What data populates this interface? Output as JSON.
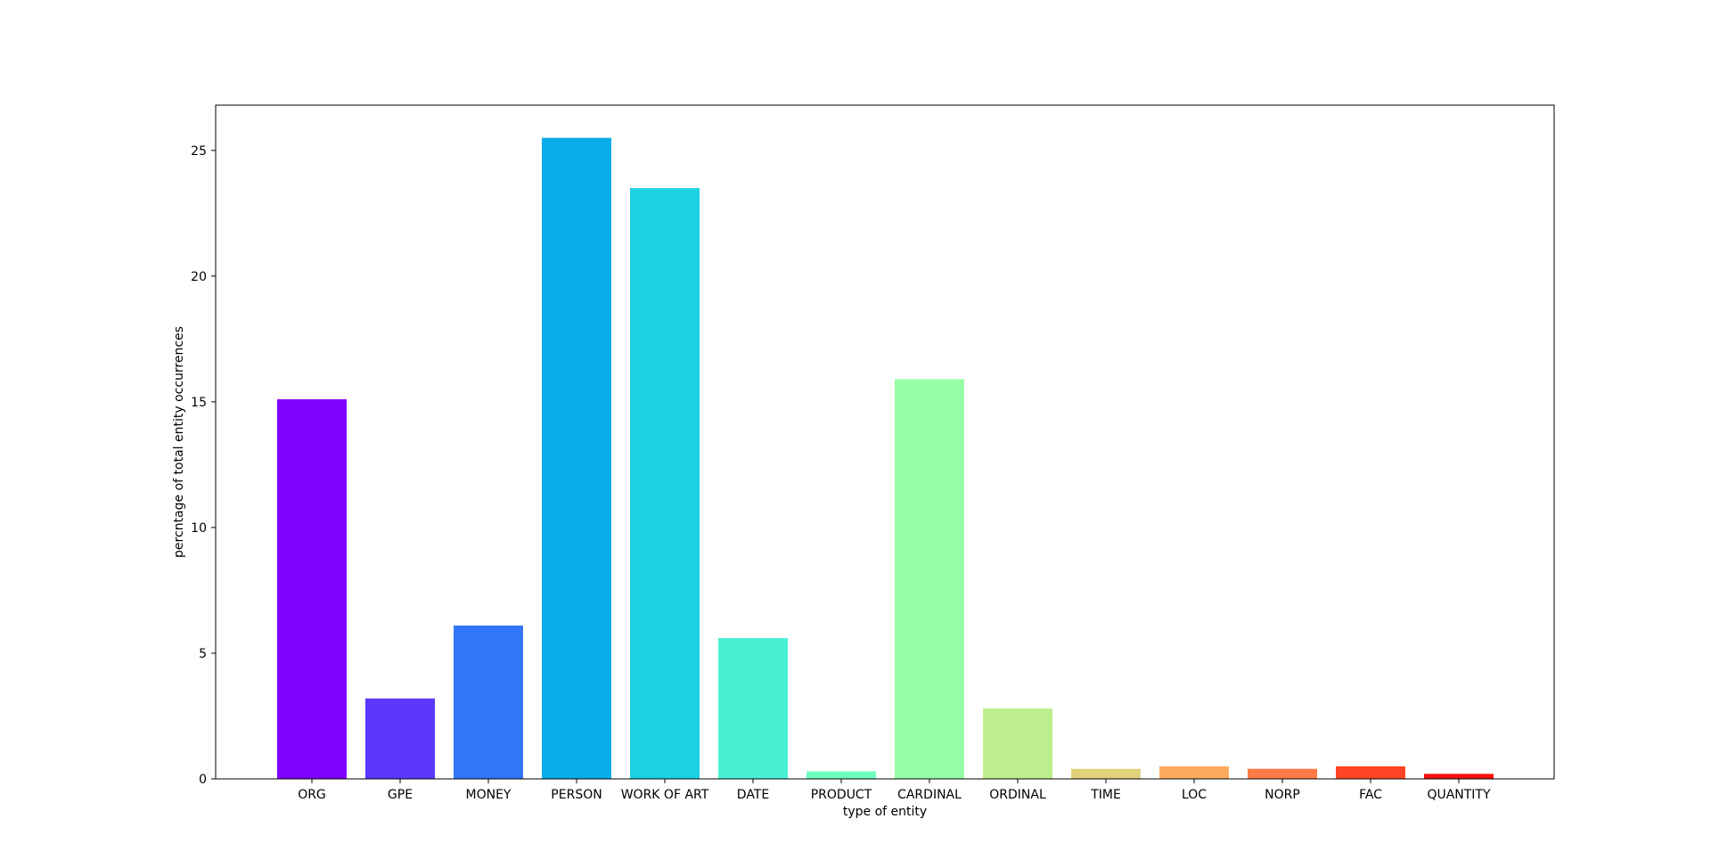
{
  "chart_data": {
    "type": "bar",
    "title": "",
    "xlabel": "type of entity",
    "ylabel": "percntage of total entity occurrences",
    "categories": [
      "ORG",
      "GPE",
      "MONEY",
      "PERSON",
      "WORK OF ART",
      "DATE",
      "PRODUCT",
      "CARDINAL",
      "ORDINAL",
      "TIME",
      "LOC",
      "NORP",
      "FAC",
      "QUANTITY"
    ],
    "values": [
      15.1,
      3.2,
      6.1,
      25.5,
      23.5,
      5.6,
      0.3,
      15.9,
      2.8,
      0.4,
      0.5,
      0.4,
      0.5,
      0.2
    ],
    "colors": [
      "#8000ff",
      "#5c38fd",
      "#3275f7",
      "#0bacec",
      "#1ed0e4",
      "#47f0d3",
      "#6ffdc0",
      "#96fea4",
      "#bdef8e",
      "#e0d27a",
      "#fbaa5e",
      "#ff7a46",
      "#ff4524",
      "#ff0e0a"
    ],
    "ylim": [
      0,
      26.8
    ],
    "yticks": [
      0,
      5,
      10,
      15,
      20,
      25
    ],
    "grid": false,
    "legend": "none"
  }
}
